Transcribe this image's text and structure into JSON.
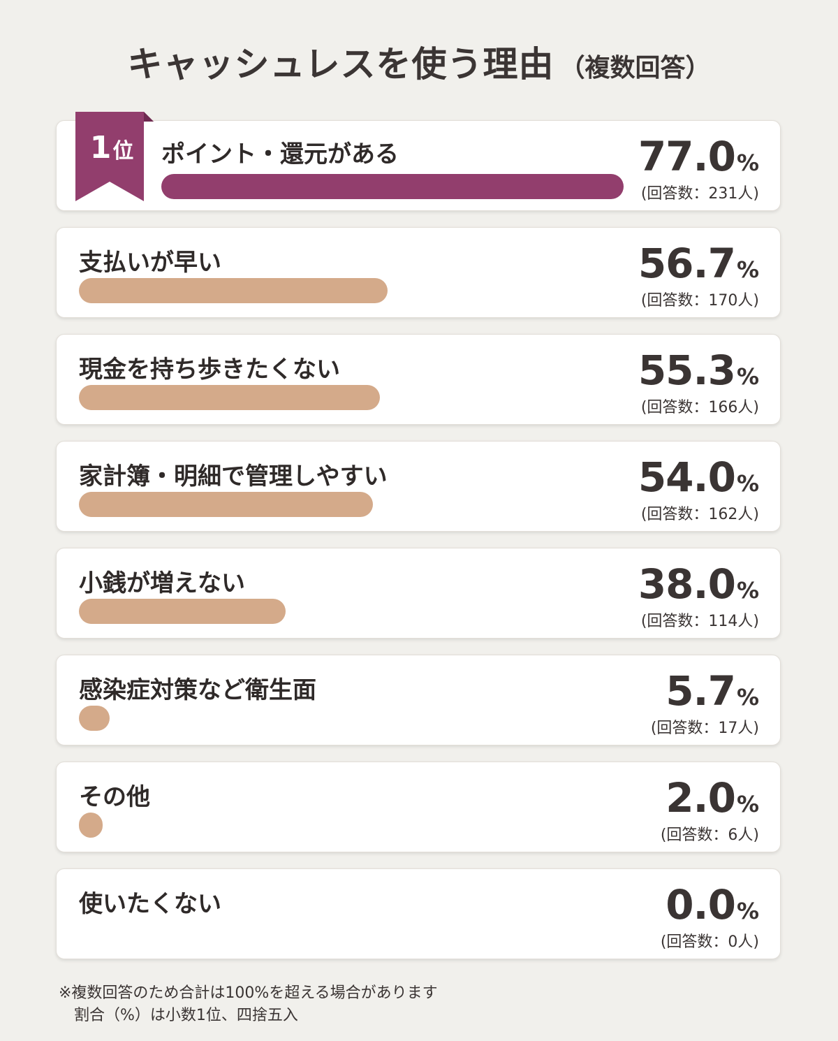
{
  "title": "キャッシュレスを使う理由",
  "subtitle": "（複数回答）",
  "badge": {
    "number": "1",
    "suffix": "位"
  },
  "colors": {
    "top_bar": "#923e6d",
    "bar": "#d4aa8a",
    "background": "#f1f0ec"
  },
  "chart_data": {
    "type": "bar",
    "orientation": "horizontal",
    "title": "キャッシュレスを使う理由（複数回答）",
    "unit": "%",
    "xlim": [
      0,
      100
    ],
    "categories": [
      "ポイント・還元がある",
      "支払いが早い",
      "現金を持ち歩きたくない",
      "家計簿・明細で管理しやすい",
      "小銭が増えない",
      "感染症対策など衛生面",
      "その他",
      "使いたくない"
    ],
    "values": [
      77.0,
      56.7,
      55.3,
      54.0,
      38.0,
      5.7,
      2.0,
      0.0
    ],
    "pct_labels": [
      "77.0",
      "56.7",
      "55.3",
      "54.0",
      "38.0",
      "5.7",
      "2.0",
      "0.0"
    ],
    "count_labels": [
      "(回答数：231人)",
      "(回答数：170人)",
      "(回答数：166人)",
      "(回答数：162人)",
      "(回答数：114人)",
      "(回答数：17人)",
      "(回答数：6人)",
      "(回答数：0人)"
    ]
  },
  "notes": [
    "※複数回答のため合計は100%を超える場合があります",
    "割合（%）は小数1位、四捨五入"
  ]
}
